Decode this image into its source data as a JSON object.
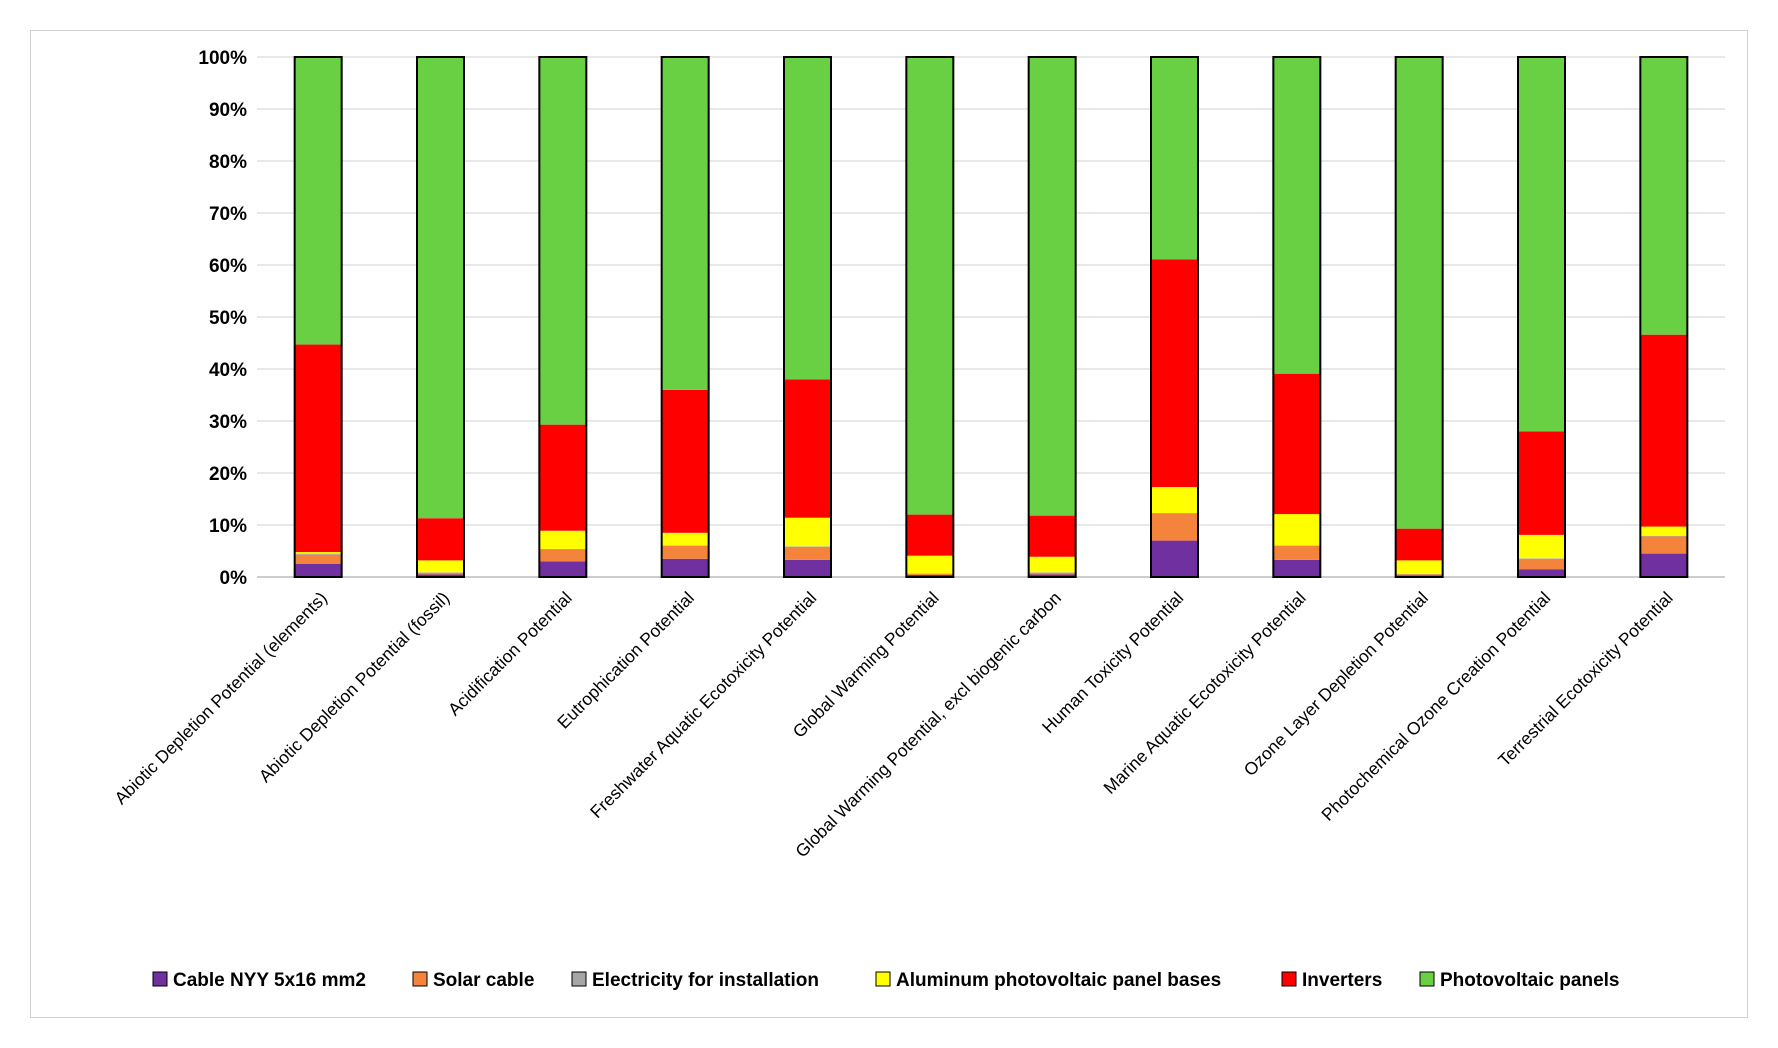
{
  "chart_data": {
    "type": "bar",
    "stacked": true,
    "percent": true,
    "title": "",
    "xlabel": "",
    "ylabel": "",
    "ylim": [
      0,
      100
    ],
    "yticks": [
      "0%",
      "10%",
      "20%",
      "30%",
      "40%",
      "50%",
      "60%",
      "70%",
      "80%",
      "90%",
      "100%"
    ],
    "grid": true,
    "legend_position": "bottom",
    "categories": [
      "Abiotic Depletion Potential (elements)",
      "Abiotic Depletion Potential (fossil)",
      "Acidification Potential",
      "Eutrophication Potential",
      "Freshwater Aquatic Ecotoxicity Potential",
      "Global Warming Potential",
      "Global Warming Potential, excl biogenic carbon",
      "Human Toxicity Potential",
      "Marine Aquatic Ecotoxicity Potential",
      "Ozone Layer Depletion Potential",
      "Photochemical Ozone Creation Potential",
      "Terrestrial Ecotoxicity Potential"
    ],
    "series": [
      {
        "name": "Cable NYY 5x16 mm2",
        "color": "#7030A0",
        "values": [
          2.5,
          0.5,
          3.0,
          3.5,
          3.3,
          0.4,
          0.5,
          7.0,
          3.3,
          0.3,
          1.5,
          4.5
        ]
      },
      {
        "name": "Solar cable",
        "color": "#F4843C",
        "values": [
          1.8,
          0.3,
          2.3,
          2.5,
          2.5,
          0.2,
          0.3,
          5.2,
          2.7,
          0.2,
          2.0,
          3.3
        ]
      },
      {
        "name": "Electricity for installation",
        "color": "#A6A6A6",
        "values": [
          0.2,
          0.1,
          0.1,
          0.1,
          0.1,
          0.1,
          0.1,
          0.1,
          0.1,
          0.1,
          0.1,
          0.1
        ]
      },
      {
        "name": "Aluminum photovoltaic panel bases",
        "color": "#FFFF00",
        "values": [
          0.3,
          2.3,
          3.5,
          2.4,
          5.5,
          3.4,
          3.0,
          5.0,
          6.0,
          2.6,
          4.5,
          1.8
        ]
      },
      {
        "name": "Inverters",
        "color": "#FF0000",
        "values": [
          39.9,
          8.1,
          20.4,
          27.5,
          26.6,
          7.9,
          7.9,
          43.8,
          27.0,
          6.1,
          19.9,
          36.9
        ]
      },
      {
        "name": "Photovoltaic panels",
        "color": "#6AD043",
        "values": [
          55.3,
          88.7,
          70.7,
          64.0,
          62.0,
          88.0,
          88.2,
          38.9,
          60.9,
          90.7,
          72.0,
          53.4
        ]
      }
    ]
  }
}
